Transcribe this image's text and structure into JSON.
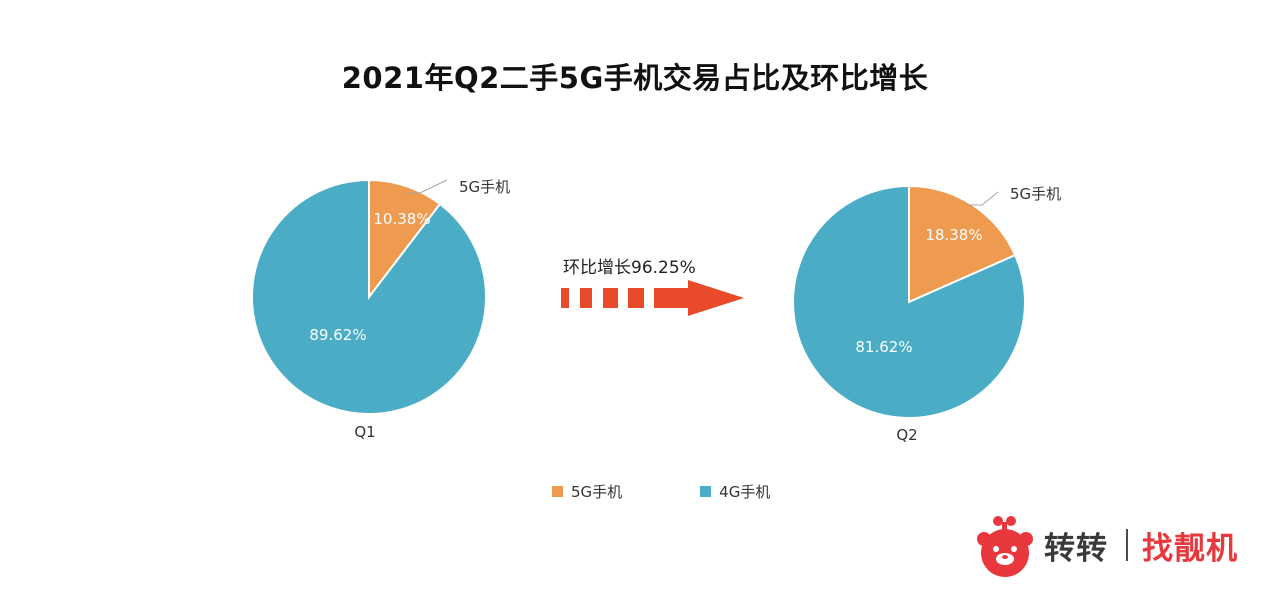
{
  "title": "2021年Q2二手5G手机交易占比及环比增长",
  "colors": {
    "series_5g": "#ee9b50",
    "series_4g": "#4bacc6",
    "arrow": "#e84a2a",
    "brand_red": "#e8383d"
  },
  "growth_label": "环比增长96.25%",
  "chart_data": [
    {
      "type": "pie",
      "category": "Q1",
      "slices": [
        {
          "name": "5G手机",
          "value": 10.38,
          "label": "10.38%"
        },
        {
          "name": "4G手机",
          "value": 89.62,
          "label": "89.62%"
        }
      ]
    },
    {
      "type": "pie",
      "category": "Q2",
      "slices": [
        {
          "name": "5G手机",
          "value": 18.38,
          "label": "18.38%"
        },
        {
          "name": "4G手机",
          "value": 81.62,
          "label": "81.62%"
        }
      ]
    }
  ],
  "callout_label": "5G手机",
  "legend": [
    {
      "name": "5G手机",
      "color": "#ee9b50"
    },
    {
      "name": "4G手机",
      "color": "#4bacc6"
    }
  ],
  "logo": {
    "brand": "转转",
    "slogan": "找靓机"
  }
}
